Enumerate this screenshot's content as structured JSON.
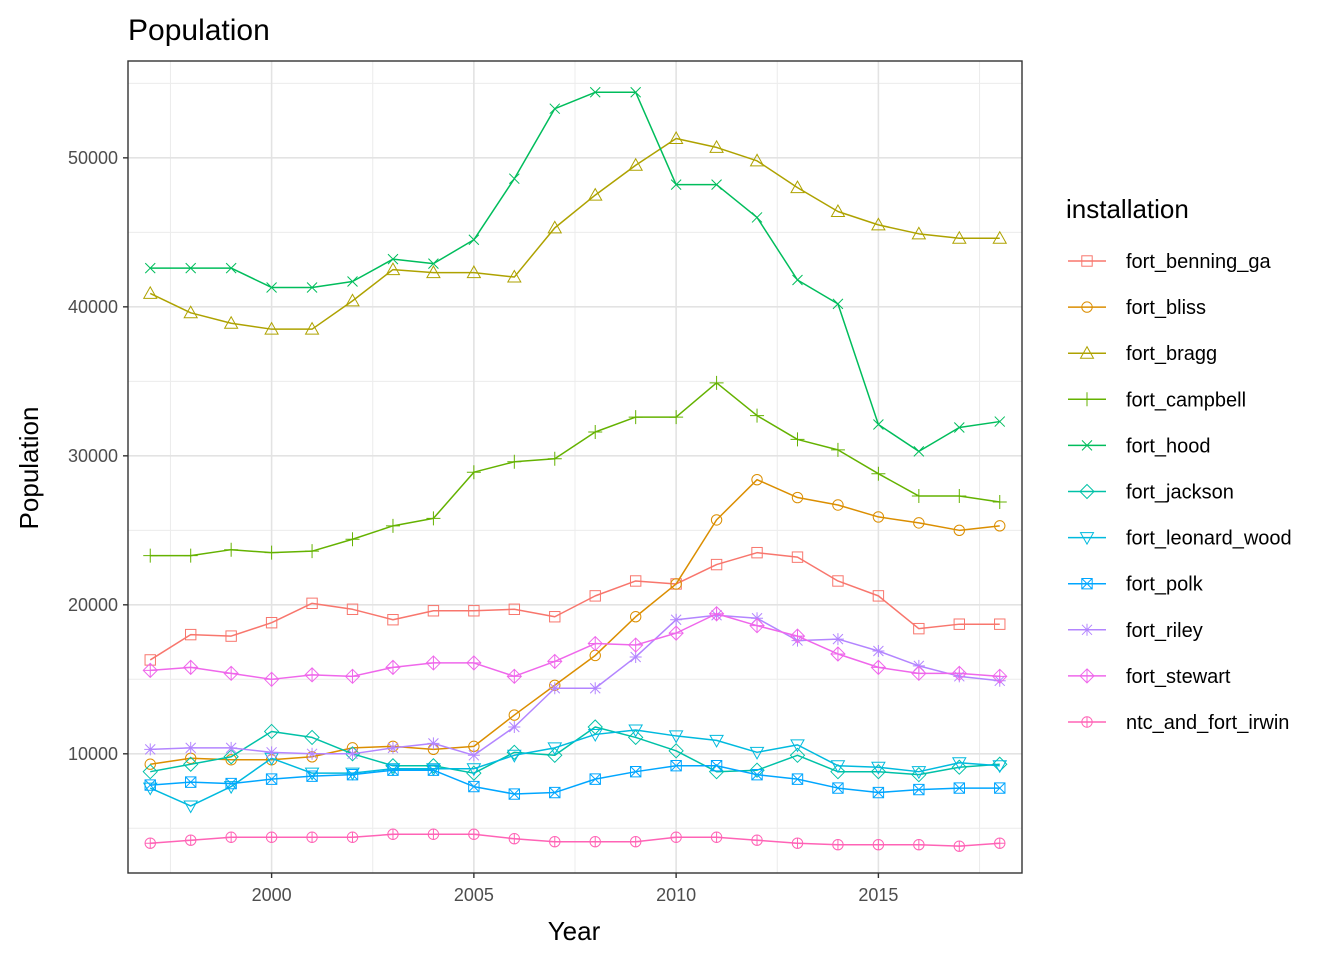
{
  "chart_data": {
    "type": "line",
    "title": "Population",
    "xlabel": "Year",
    "ylabel": "Population",
    "xlim": [
      1996.45,
      2018.55
    ],
    "ylim": [
      2000,
      56500
    ],
    "x_ticks": [
      2000,
      2005,
      2010,
      2015
    ],
    "y_ticks": [
      10000,
      20000,
      30000,
      40000,
      50000
    ],
    "grid": true,
    "legend_position": "right",
    "legend_title": "installation",
    "x": [
      1997,
      1998,
      1999,
      2000,
      2001,
      2002,
      2003,
      2004,
      2005,
      2006,
      2007,
      2008,
      2009,
      2010,
      2011,
      2012,
      2013,
      2014,
      2015,
      2016,
      2017,
      2018
    ],
    "series": [
      {
        "name": "fort_benning_ga",
        "color": "#F8766D",
        "shape": "square",
        "values": [
          16300,
          18000,
          17900,
          18800,
          20100,
          19700,
          19000,
          19600,
          19600,
          19700,
          19200,
          20600,
          21600,
          21400,
          22700,
          23500,
          23200,
          21600,
          20600,
          18400,
          18700,
          18700
        ]
      },
      {
        "name": "fort_bliss",
        "color": "#DB8E00",
        "shape": "circle",
        "values": [
          9300,
          9700,
          9600,
          9600,
          9800,
          10400,
          10500,
          10300,
          10500,
          12600,
          14600,
          16600,
          19200,
          21400,
          25700,
          28400,
          27200,
          26700,
          25900,
          25500,
          25000,
          25300
        ]
      },
      {
        "name": "fort_bragg",
        "color": "#AEA200",
        "shape": "triangle",
        "values": [
          40900,
          39600,
          38900,
          38500,
          38500,
          40400,
          42500,
          42300,
          42300,
          42000,
          45300,
          47500,
          49500,
          51300,
          50700,
          49800,
          48000,
          46400,
          45500,
          44900,
          44600,
          44600
        ]
      },
      {
        "name": "fort_campbell",
        "color": "#64B200",
        "shape": "plus",
        "values": [
          23300,
          23300,
          23700,
          23500,
          23600,
          24400,
          25300,
          25800,
          28900,
          29600,
          29800,
          31600,
          32600,
          32600,
          34900,
          32700,
          31100,
          30400,
          28800,
          27300,
          27300,
          26900
        ]
      },
      {
        "name": "fort_hood",
        "color": "#00BD5C",
        "shape": "cross",
        "values": [
          42600,
          42600,
          42600,
          41300,
          41300,
          41700,
          43200,
          42900,
          44500,
          48600,
          53300,
          54400,
          54400,
          48200,
          48200,
          46000,
          41800,
          40200,
          32100,
          30300,
          31900,
          32300
        ]
      },
      {
        "name": "fort_jackson",
        "color": "#00C1A7",
        "shape": "diamond",
        "values": [
          8800,
          9300,
          9800,
          11500,
          11100,
          10000,
          9200,
          9200,
          8700,
          10100,
          9900,
          11800,
          11100,
          10200,
          8800,
          8900,
          9900,
          8800,
          8800,
          8600,
          9100,
          9300
        ]
      },
      {
        "name": "fort_leonard_wood",
        "color": "#00BADE",
        "shape": "triangle-down",
        "values": [
          7700,
          6500,
          7800,
          9700,
          8700,
          8700,
          9000,
          9000,
          9000,
          9900,
          10400,
          11300,
          11600,
          11200,
          10900,
          10100,
          10600,
          9200,
          9100,
          8800,
          9400,
          9200
        ]
      },
      {
        "name": "fort_polk",
        "color": "#00A6FF",
        "shape": "square-x",
        "values": [
          7900,
          8100,
          8000,
          8300,
          8500,
          8600,
          8900,
          8900,
          7800,
          7300,
          7400,
          8300,
          8800,
          9200,
          9200,
          8600,
          8300,
          7700,
          7400,
          7600,
          7700,
          7700
        ]
      },
      {
        "name": "fort_riley",
        "color": "#B385FF",
        "shape": "asterisk",
        "values": [
          10300,
          10400,
          10400,
          10100,
          10000,
          10000,
          10400,
          10700,
          9900,
          11800,
          14400,
          14400,
          16500,
          19000,
          19300,
          19100,
          17600,
          17700,
          16900,
          15900,
          15200,
          14900
        ]
      },
      {
        "name": "fort_stewart",
        "color": "#EF67EB",
        "shape": "diamond-plus",
        "values": [
          15600,
          15800,
          15400,
          15000,
          15300,
          15200,
          15800,
          16100,
          16100,
          15200,
          16200,
          17400,
          17300,
          18100,
          19400,
          18600,
          17900,
          16700,
          15800,
          15400,
          15400,
          15200
        ]
      },
      {
        "name": "ntc_and_fort_irwin",
        "color": "#FF63B6",
        "shape": "circle-plus",
        "values": [
          4000,
          4200,
          4400,
          4400,
          4400,
          4400,
          4600,
          4600,
          4600,
          4300,
          4100,
          4100,
          4100,
          4400,
          4400,
          4200,
          4000,
          3900,
          3900,
          3900,
          3800,
          4000
        ]
      }
    ]
  }
}
